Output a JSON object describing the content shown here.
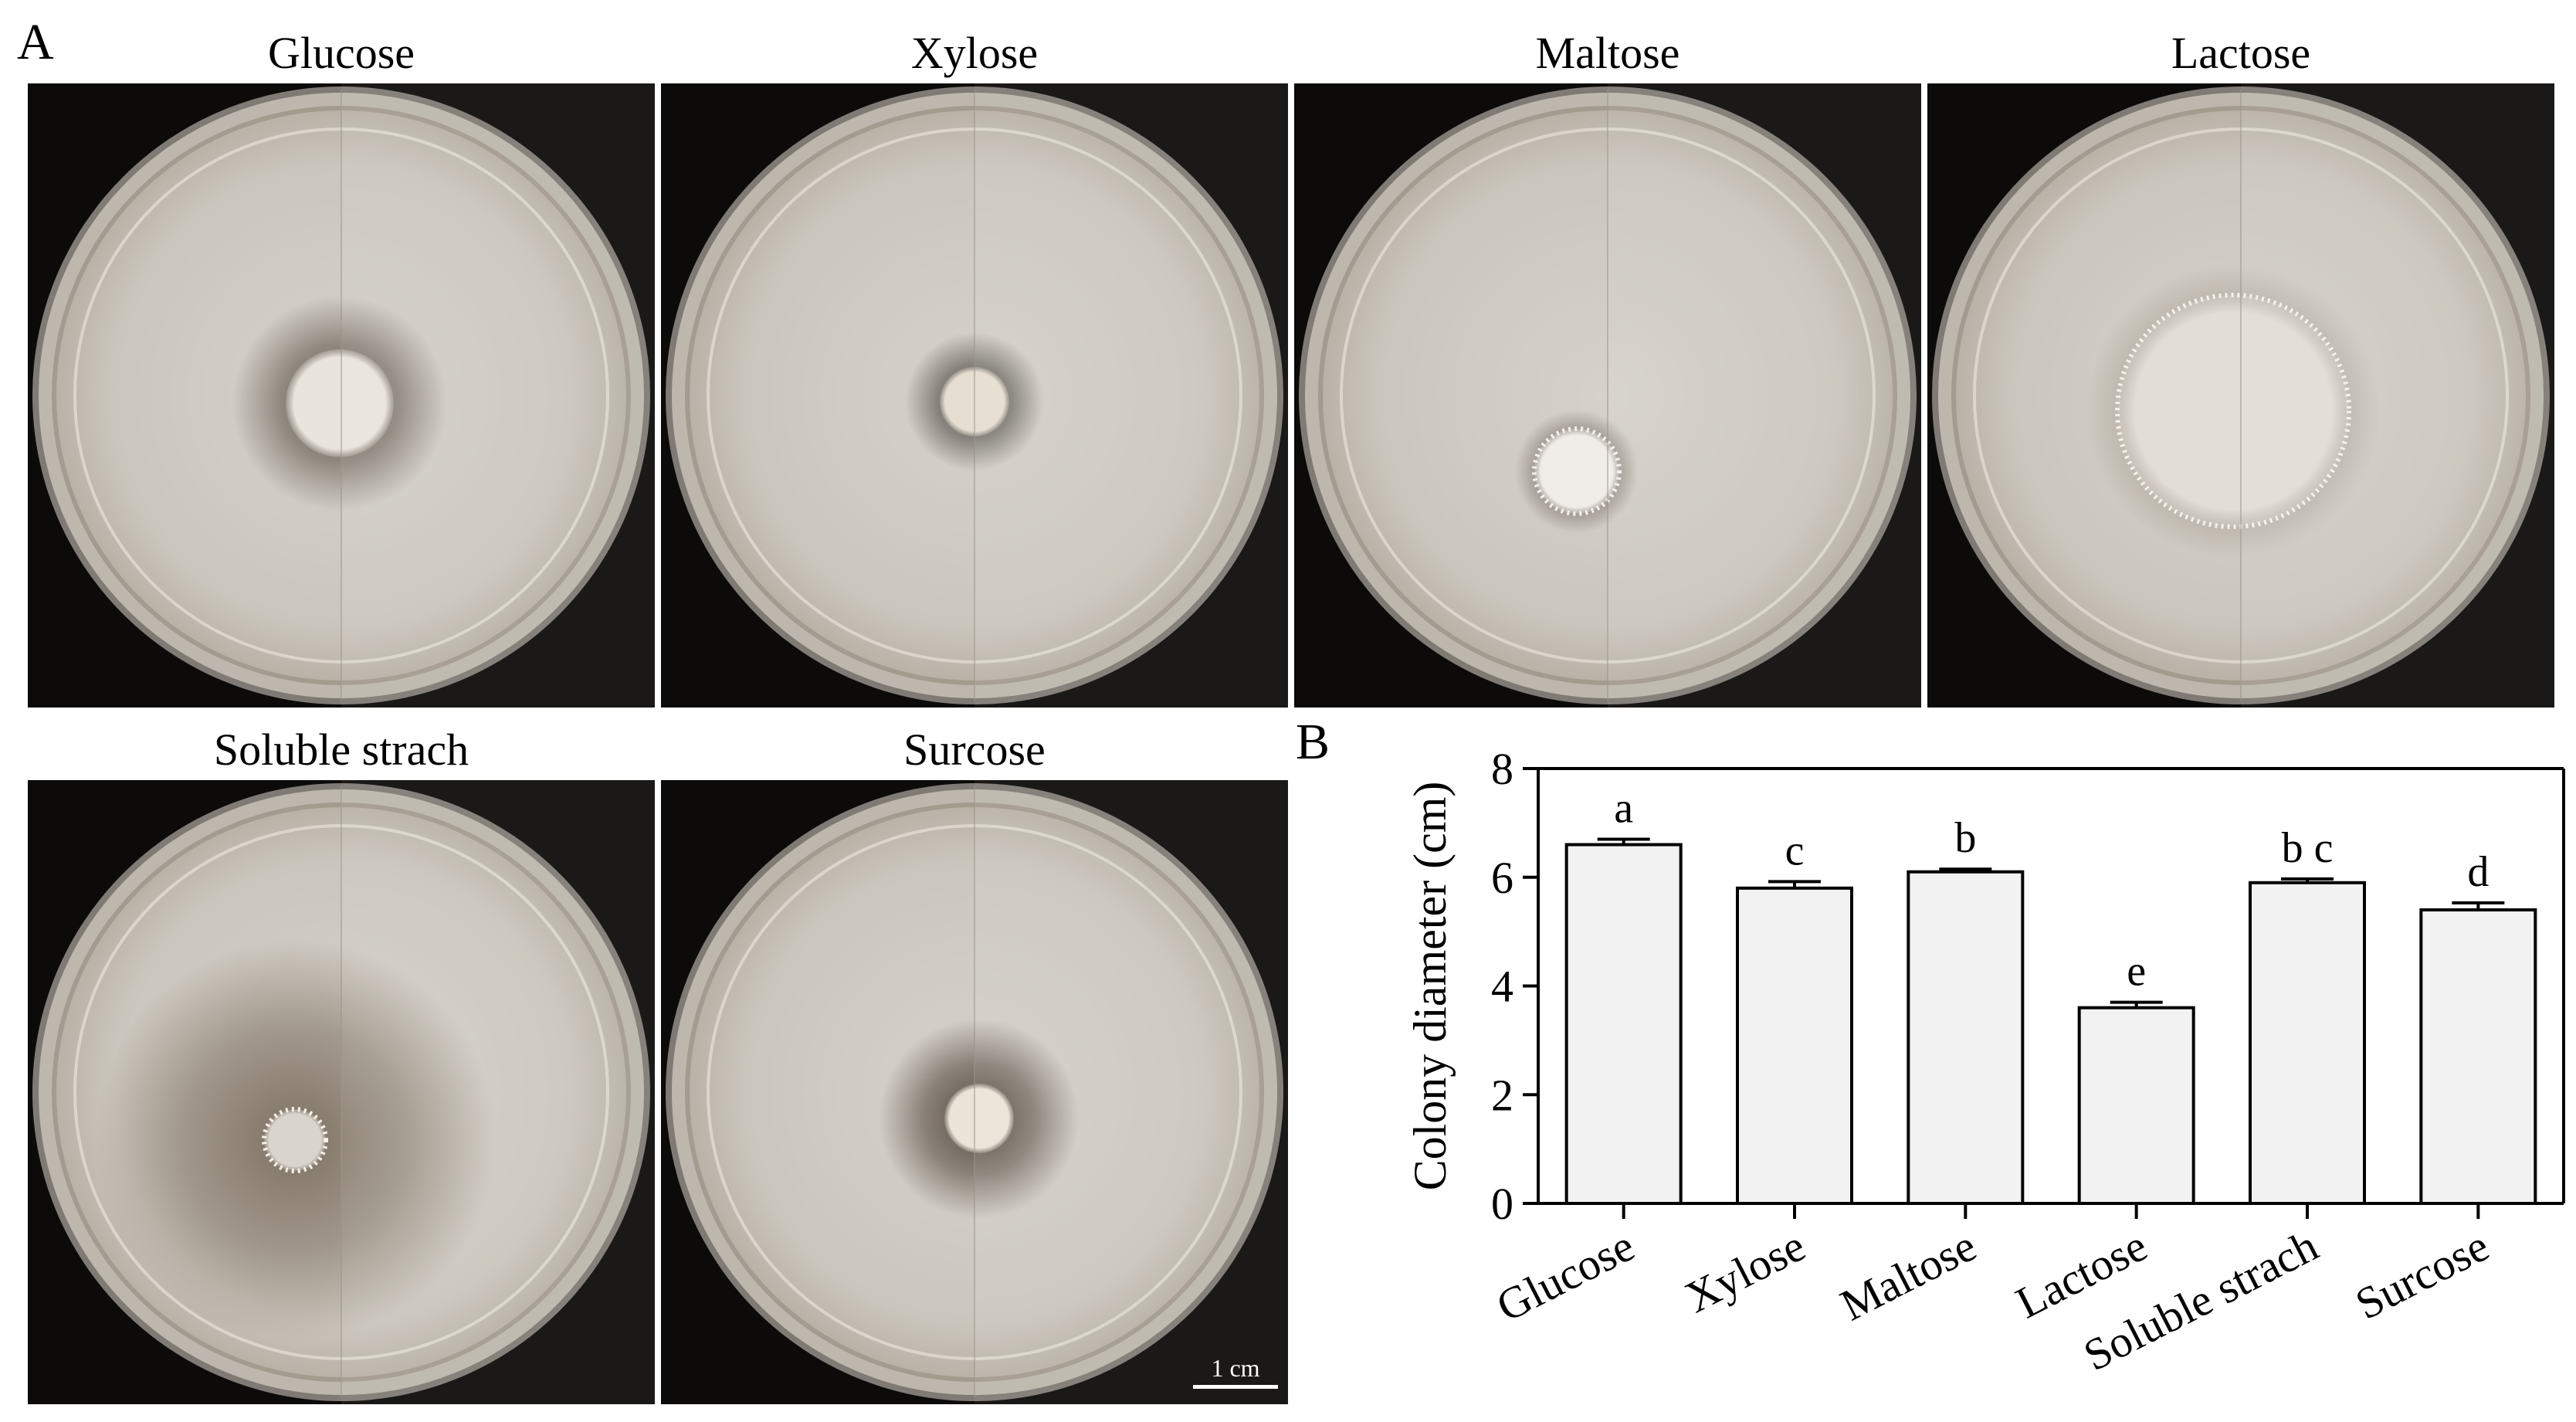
{
  "figure": {
    "panel_a_label": "A",
    "panel_b_label": "B",
    "plates": [
      {
        "title": "Glucose",
        "colony_color": "#e9e4dc",
        "halo_color": "#5a5046"
      },
      {
        "title": "Xylose",
        "colony_color": "#e6ded0",
        "halo_color": "#4a4640"
      },
      {
        "title": "Maltose",
        "colony_color": "#f0ede9",
        "halo_color": "#5b5148"
      },
      {
        "title": "Lactose",
        "colony_color": "#e2ddd6",
        "halo_color": "#8c8274"
      },
      {
        "title": "Soluble strach",
        "colony_color": "#d9d4cc",
        "halo_color": "#7a6c5c"
      },
      {
        "title": "Surcose",
        "colony_color": "#ebe4d8",
        "halo_color": "#4d4137"
      }
    ],
    "scale_bar_label": "1 cm"
  },
  "chart_data": {
    "type": "bar",
    "categories": [
      "Glucose",
      "Xylose",
      "Maltose",
      "Lactose",
      "Soluble strach",
      "Surcose"
    ],
    "values": [
      6.6,
      5.8,
      6.1,
      3.6,
      5.9,
      5.4
    ],
    "errors": [
      0.1,
      0.12,
      0.05,
      0.1,
      0.07,
      0.13
    ],
    "significance_letters": [
      "a",
      "c",
      "b",
      "e",
      "b c",
      "d"
    ],
    "xlabel": "",
    "ylabel": "Colony diameter (cm)",
    "ylim": [
      0,
      8
    ],
    "yticks": [
      0,
      2,
      4,
      6,
      8
    ],
    "bar_color": "#f2f2f2",
    "grid": false,
    "legend": "none"
  }
}
